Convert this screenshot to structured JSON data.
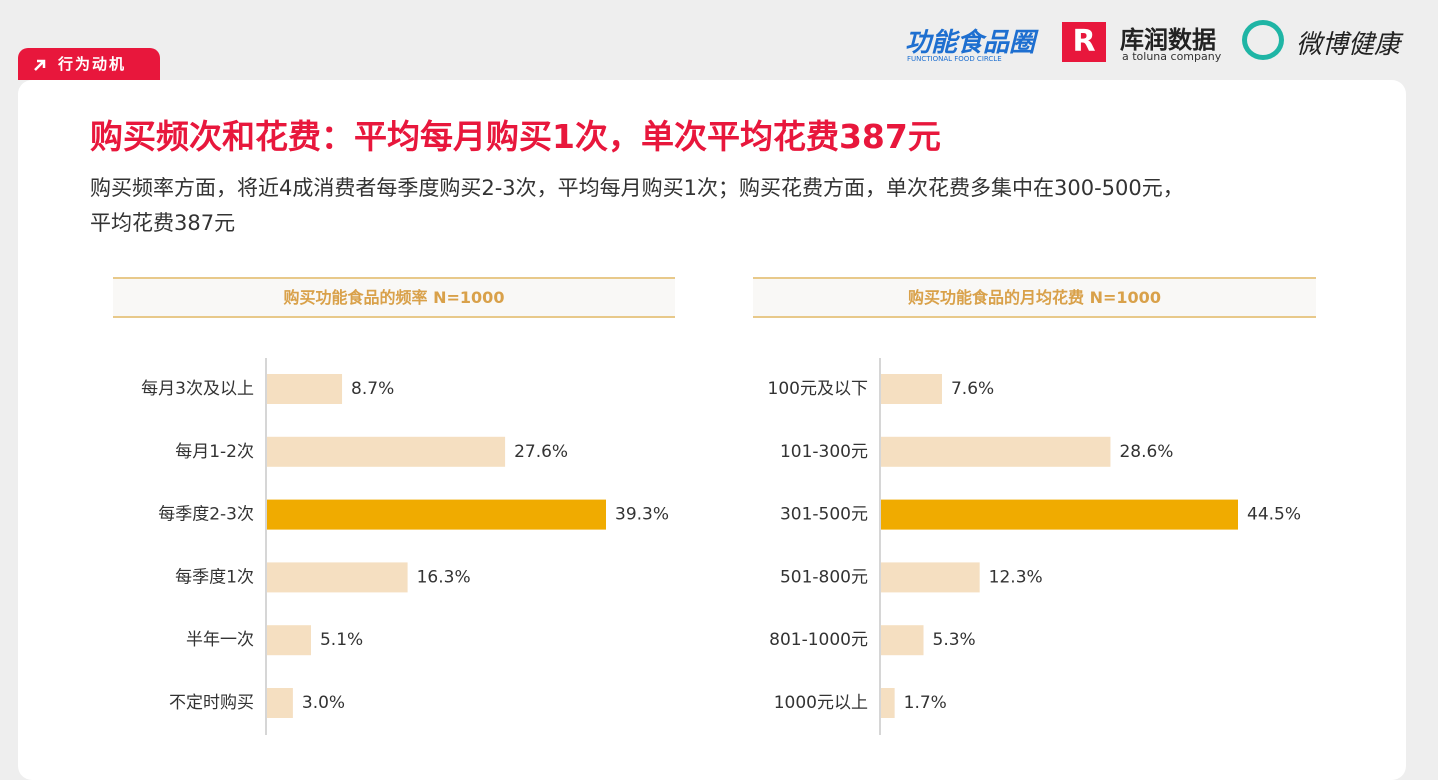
{
  "tag": "行为动机",
  "title": "购买频次和花费：平均每月购买1次，单次平均花费387元",
  "subtitle": [
    "购买频率方面，将近4成消费者每季度购买2-3次，平均每月购买1次；购买花费方面，单次花费多集中在300-500元，",
    "平均花费387元"
  ],
  "logos": {
    "brand1": "功能食品圈",
    "brand1_sub": "FUNCTIONAL FOOD CIRCLE",
    "brand2": "库润数据",
    "brand2_sub": "a toluna company",
    "brand3": "微博健康"
  },
  "chart_data": [
    {
      "type": "hbar",
      "title": "购买功能食品的频率 N=1000",
      "categories": [
        "每月3次及以上",
        "每月1-2次",
        "每季度2-3次",
        "每季度1次",
        "半年一次",
        "不定时购买"
      ],
      "values": [
        8.7,
        27.6,
        39.3,
        16.3,
        5.1,
        3.0
      ],
      "value_labels": [
        "8.7%",
        "27.6%",
        "39.3%",
        "16.3%",
        "5.1%",
        "3.0%"
      ],
      "colors": [
        "#f5dfc1",
        "#f5dfc1",
        "#f0ab00",
        "#f5dfc1",
        "#f5dfc1",
        "#f5dfc1"
      ]
    },
    {
      "type": "hbar",
      "title": "购买功能食品的月均花费 N=1000",
      "categories": [
        "100元及以下",
        "101-300元",
        "301-500元",
        "501-800元",
        "801-1000元",
        "1000元以上"
      ],
      "values": [
        7.6,
        28.6,
        44.5,
        12.3,
        5.3,
        1.7
      ],
      "value_labels": [
        "7.6%",
        "28.6%",
        "44.5%",
        "12.3%",
        "5.3%",
        "1.7%"
      ],
      "colors": [
        "#f5dfc1",
        "#f5dfc1",
        "#f0ab00",
        "#f5dfc1",
        "#f5dfc1",
        "#f5dfc1"
      ]
    }
  ]
}
